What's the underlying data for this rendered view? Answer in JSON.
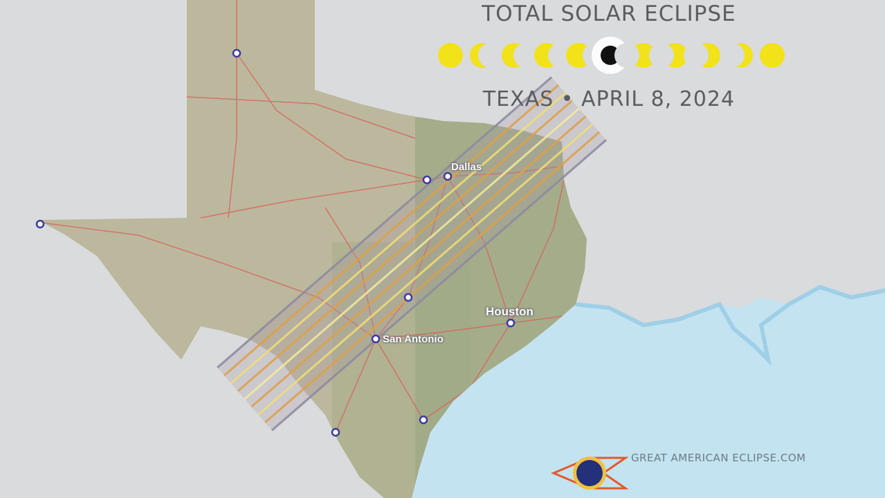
{
  "title": "TOTAL SOLAR ECLIPSE",
  "subtitle": "TEXAS  •  APRIL 8, 2024",
  "website": "GREAT AMERICAN ECLIPSE.COM",
  "logo_text": "Great American Eclipse",
  "colors": {
    "land_outside": "#d9dbdd",
    "texas": "#b9b59a",
    "water": "#c3e3f1",
    "roads": "#d9615a",
    "path": "#e0a040",
    "sun": "#f2e21a"
  },
  "eclipse_phases": [
    "partial",
    "partial",
    "partial",
    "partial",
    "partial",
    "total",
    "partial",
    "partial",
    "partial",
    "partial",
    "partial"
  ],
  "cities": [
    {
      "name": "Dallas",
      "type": "major"
    },
    {
      "name": "Houston",
      "type": "major"
    },
    {
      "name": "San Antonio",
      "type": "major"
    }
  ]
}
